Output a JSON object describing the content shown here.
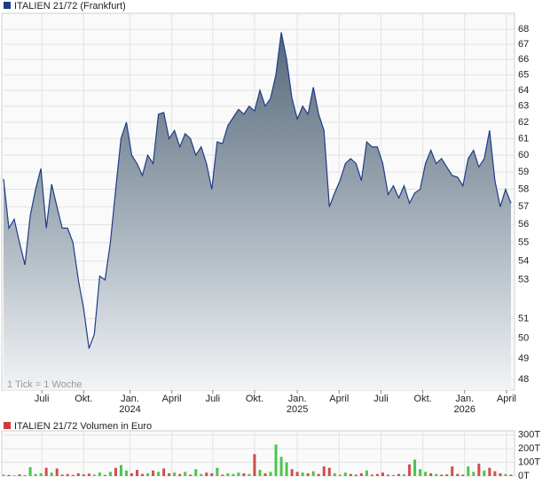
{
  "chart_data": [
    {
      "type": "area",
      "title": "ITALIEN 21/72 (Frankfurt)",
      "annotation": "1 Tick = 1 Woche",
      "color": "#1f3c88",
      "log_scale": true,
      "grid": true,
      "xlim": [
        -0.33,
        95.67
      ],
      "xticks": [
        {
          "value": 7.17,
          "label": "Juli"
        },
        {
          "value": 15,
          "label": "Okt."
        },
        {
          "value": 23.67,
          "label": "Jan."
        },
        {
          "value": 31.5,
          "label": "April"
        },
        {
          "value": 39.17,
          "label": "Juli"
        },
        {
          "value": 47,
          "label": "Okt."
        },
        {
          "value": 55,
          "label": "Jan."
        },
        {
          "value": 62.83,
          "label": "April"
        },
        {
          "value": 70.67,
          "label": "Juli"
        },
        {
          "value": 78.5,
          "label": "Okt."
        },
        {
          "value": 86.33,
          "label": "Jan."
        },
        {
          "value": 94.17,
          "label": "April"
        }
      ],
      "year_labels": [
        {
          "value": 23.67,
          "label": "2024"
        },
        {
          "value": 55,
          "label": "2025"
        },
        {
          "value": 86.33,
          "label": "2026"
        }
      ],
      "ylim": [
        47.5,
        69.1
      ],
      "yticks": [
        48,
        49,
        50,
        51,
        53,
        54,
        55,
        56,
        57,
        58,
        59,
        60,
        61,
        62,
        63,
        64,
        65,
        66,
        67,
        68
      ],
      "values": [
        58.6,
        55.8,
        56.3,
        55.0,
        53.8,
        56.5,
        58.0,
        59.2,
        55.8,
        58.3,
        57.0,
        55.8,
        55.8,
        55.0,
        53.0,
        51.5,
        49.5,
        50.2,
        53.2,
        53.0,
        55.0,
        58.0,
        61.0,
        62.0,
        60.0,
        59.5,
        58.8,
        60.0,
        59.5,
        62.5,
        62.6,
        61.0,
        61.5,
        60.5,
        61.3,
        61.0,
        60.0,
        60.5,
        59.5,
        58.0,
        60.8,
        60.7,
        61.8,
        62.3,
        62.8,
        62.5,
        63.0,
        62.7,
        64.0,
        63.0,
        63.5,
        65.0,
        67.8,
        66.0,
        63.5,
        62.2,
        63.0,
        62.5,
        64.2,
        62.5,
        61.5,
        57.0,
        57.8,
        58.5,
        59.5,
        59.8,
        59.5,
        58.5,
        60.8,
        60.5,
        60.5,
        59.5,
        57.7,
        58.2,
        57.5,
        58.2,
        57.2,
        57.8,
        58.0,
        59.5,
        60.3,
        59.5,
        59.8,
        59.3,
        58.8,
        58.7,
        58.2,
        59.8,
        60.3,
        59.3,
        59.8,
        61.5,
        58.5,
        57.0,
        58.0,
        57.2
      ]
    },
    {
      "type": "bar",
      "title": "ITALIEN 21/72 Volumen in Euro",
      "legend_color": "#c83c3c",
      "xlim": [
        -0.33,
        95.67
      ],
      "ylim": [
        0,
        330
      ],
      "yticks": [
        {
          "value": 0,
          "label": "0T"
        },
        {
          "value": 100,
          "label": "100T"
        },
        {
          "value": 200,
          "label": "200T"
        },
        {
          "value": 300,
          "label": "300T"
        }
      ],
      "series": [
        {
          "color": "#4cc44c",
          "values": [
            10,
            null,
            5,
            null,
            null,
            65,
            15,
            20,
            null,
            25,
            null,
            null,
            null,
            null,
            null,
            null,
            null,
            10,
            25,
            null,
            30,
            null,
            80,
            40,
            null,
            null,
            null,
            20,
            null,
            30,
            null,
            null,
            25,
            null,
            30,
            null,
            50,
            15,
            null,
            null,
            60,
            null,
            20,
            15,
            25,
            null,
            15,
            null,
            45,
            null,
            30,
            230,
            140,
            100,
            null,
            null,
            25,
            null,
            35,
            null,
            null,
            null,
            20,
            10,
            25,
            null,
            null,
            null,
            40,
            null,
            null,
            null,
            null,
            8,
            null,
            12,
            null,
            120,
            50,
            30,
            null,
            15,
            null,
            null,
            null,
            null,
            null,
            70,
            30,
            null,
            40,
            null,
            null,
            null,
            15,
            null
          ]
        },
        {
          "color": "#d44c4c",
          "values": [
            null,
            8,
            null,
            12,
            6,
            null,
            null,
            null,
            60,
            null,
            55,
            10,
            15,
            8,
            20,
            12,
            18,
            null,
            null,
            8,
            null,
            60,
            null,
            null,
            20,
            45,
            15,
            null,
            40,
            null,
            55,
            20,
            null,
            15,
            null,
            10,
            null,
            null,
            25,
            20,
            null,
            10,
            null,
            null,
            null,
            20,
            null,
            160,
            null,
            20,
            null,
            null,
            null,
            null,
            50,
            30,
            null,
            20,
            null,
            15,
            70,
            60,
            null,
            null,
            null,
            15,
            10,
            20,
            null,
            10,
            15,
            25,
            10,
            null,
            15,
            null,
            85,
            null,
            null,
            null,
            20,
            null,
            10,
            12,
            70,
            15,
            10,
            null,
            null,
            90,
            null,
            60,
            35,
            20,
            null,
            10
          ]
        }
      ]
    }
  ]
}
